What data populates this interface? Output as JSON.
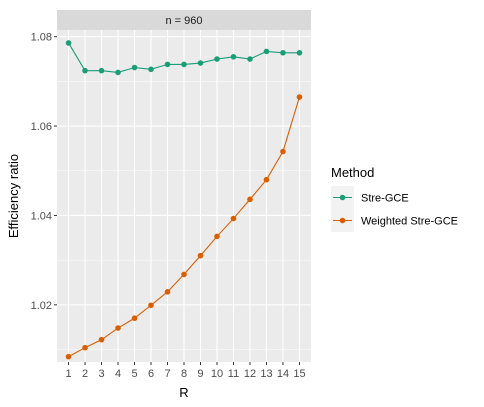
{
  "chart_data": {
    "type": "line",
    "facet_label": "n = 960",
    "xlabel": "R",
    "ylabel": "Efficiency ratio",
    "x": [
      1,
      2,
      3,
      4,
      5,
      6,
      7,
      8,
      9,
      10,
      11,
      12,
      13,
      14,
      15
    ],
    "x_ticks": [
      "1",
      "2",
      "3",
      "4",
      "5",
      "6",
      "7",
      "8",
      "9",
      "10",
      "11",
      "12",
      "13",
      "14",
      "15"
    ],
    "xlim": [
      0.3,
      15.7
    ],
    "ylim": [
      1.0072,
      1.0815
    ],
    "y_ticks": [
      1.02,
      1.04,
      1.06,
      1.08
    ],
    "y_tick_labels": [
      "1.02",
      "1.04",
      "1.06",
      "1.08"
    ],
    "grid": true,
    "legend": {
      "title": "Method",
      "position": "right"
    },
    "series": [
      {
        "name": "Stre-GCE",
        "color": "#1b9e77",
        "values": [
          1.0786,
          1.0724,
          1.0724,
          1.072,
          1.0731,
          1.0727,
          1.0738,
          1.0738,
          1.0741,
          1.075,
          1.0755,
          1.075,
          1.0767,
          1.0764,
          1.0764
        ]
      },
      {
        "name": "Weighted Stre-GCE",
        "color": "#d95f02",
        "values": [
          1.0084,
          1.0104,
          1.0122,
          1.0148,
          1.017,
          1.0199,
          1.0229,
          1.0268,
          1.031,
          1.0353,
          1.0393,
          1.0436,
          1.048,
          1.0543,
          1.0665
        ]
      }
    ]
  }
}
